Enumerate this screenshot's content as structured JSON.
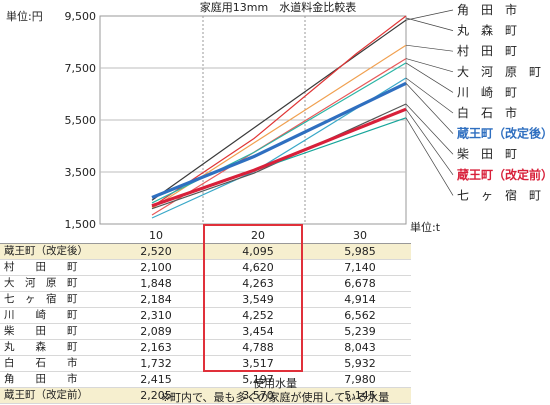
{
  "chart_data": {
    "type": "line",
    "title": "家庭用13mm　水道料金比較表",
    "y_unit_label": "単位:円",
    "x_unit_label": "単位:t",
    "x": [
      10,
      20,
      30
    ],
    "y_ticks": [
      "9,500",
      "7,500",
      "5,500",
      "3,500",
      "1,500"
    ],
    "y_tick_values": [
      9500,
      7500,
      5500,
      3500,
      1500
    ],
    "ylim": [
      1500,
      9500
    ],
    "xlabel": "使用水量",
    "highlight_x": 20,
    "series": [
      {
        "name": "角　田　市",
        "table_label": "角　　田　　市",
        "values": [
          2415,
          5197,
          7980
        ],
        "color": "#3a3a3a",
        "bold": false,
        "highlight": false
      },
      {
        "name": "丸　森　町",
        "table_label": "丸　　森　　町",
        "values": [
          2163,
          4788,
          8043
        ],
        "color": "#e03535",
        "bold": false,
        "highlight": false
      },
      {
        "name": "村　田　町",
        "table_label": "村　　田　　町",
        "values": [
          2100,
          4620,
          7140
        ],
        "color": "#f0a050",
        "bold": false,
        "highlight": false
      },
      {
        "name": "大　河　原　町",
        "table_label": "大　河　原　町",
        "values": [
          1848,
          4263,
          6678
        ],
        "color": "#e85a5a",
        "bold": false,
        "highlight": false
      },
      {
        "name": "川　崎　町",
        "table_label": "川　　崎　　町",
        "values": [
          2310,
          4252,
          6562
        ],
        "color": "#2bb5a5",
        "bold": false,
        "highlight": false
      },
      {
        "name": "白　石　市",
        "table_label": "白　　石　　市",
        "values": [
          1732,
          3517,
          5932
        ],
        "color": "#39a8c8",
        "bold": false,
        "highlight": false
      },
      {
        "name": "蔵王町（改定後）",
        "table_label": "蔵王町（改定後）",
        "values": [
          2520,
          4095,
          5985
        ],
        "color": "#2f6fc0",
        "bold": true,
        "highlight": true
      },
      {
        "name": "柴　田　町",
        "table_label": "柴　　田　　町",
        "values": [
          2089,
          3454,
          5239
        ],
        "color": "#555555",
        "bold": false,
        "highlight": false
      },
      {
        "name": "蔵王町（改定前）",
        "table_label": "蔵王町（改定前）",
        "values": [
          2205,
          3570,
          5145
        ],
        "color": "#d8203a",
        "bold": true,
        "highlight": true
      },
      {
        "name": "七　ヶ　宿　町",
        "table_label": "七　ヶ　宿　町",
        "values": [
          2184,
          3549,
          4914
        ],
        "color": "#16a59a",
        "bold": false,
        "highlight": false
      }
    ],
    "table_rows": [
      {
        "label": "蔵王町（改定後）",
        "values": [
          "2,520",
          "4,095",
          "5,985"
        ],
        "highlight": true
      },
      {
        "label": "村　　田　　町",
        "values": [
          "2,100",
          "4,620",
          "7,140"
        ],
        "highlight": false
      },
      {
        "label": "大　河　原　町",
        "values": [
          "1,848",
          "4,263",
          "6,678"
        ],
        "highlight": false
      },
      {
        "label": "七　ヶ　宿　町",
        "values": [
          "2,184",
          "3,549",
          "4,914"
        ],
        "highlight": false
      },
      {
        "label": "川　　崎　　町",
        "values": [
          "2,310",
          "4,252",
          "6,562"
        ],
        "highlight": false
      },
      {
        "label": "柴　　田　　町",
        "values": [
          "2,089",
          "3,454",
          "5,239"
        ],
        "highlight": false
      },
      {
        "label": "丸　　森　　町",
        "values": [
          "2,163",
          "4,788",
          "8,043"
        ],
        "highlight": false
      },
      {
        "label": "白　　石　　市",
        "values": [
          "1,732",
          "3,517",
          "5,932"
        ],
        "highlight": false
      },
      {
        "label": "角　　田　　市",
        "values": [
          "2,415",
          "5,197",
          "7,980"
        ],
        "highlight": false
      },
      {
        "label": "蔵王町（改定前）",
        "values": [
          "2,205",
          "3,570",
          "5,145"
        ],
        "highlight": true
      }
    ],
    "footnote": "※町内で、最も多くの家庭が使用している水量"
  }
}
